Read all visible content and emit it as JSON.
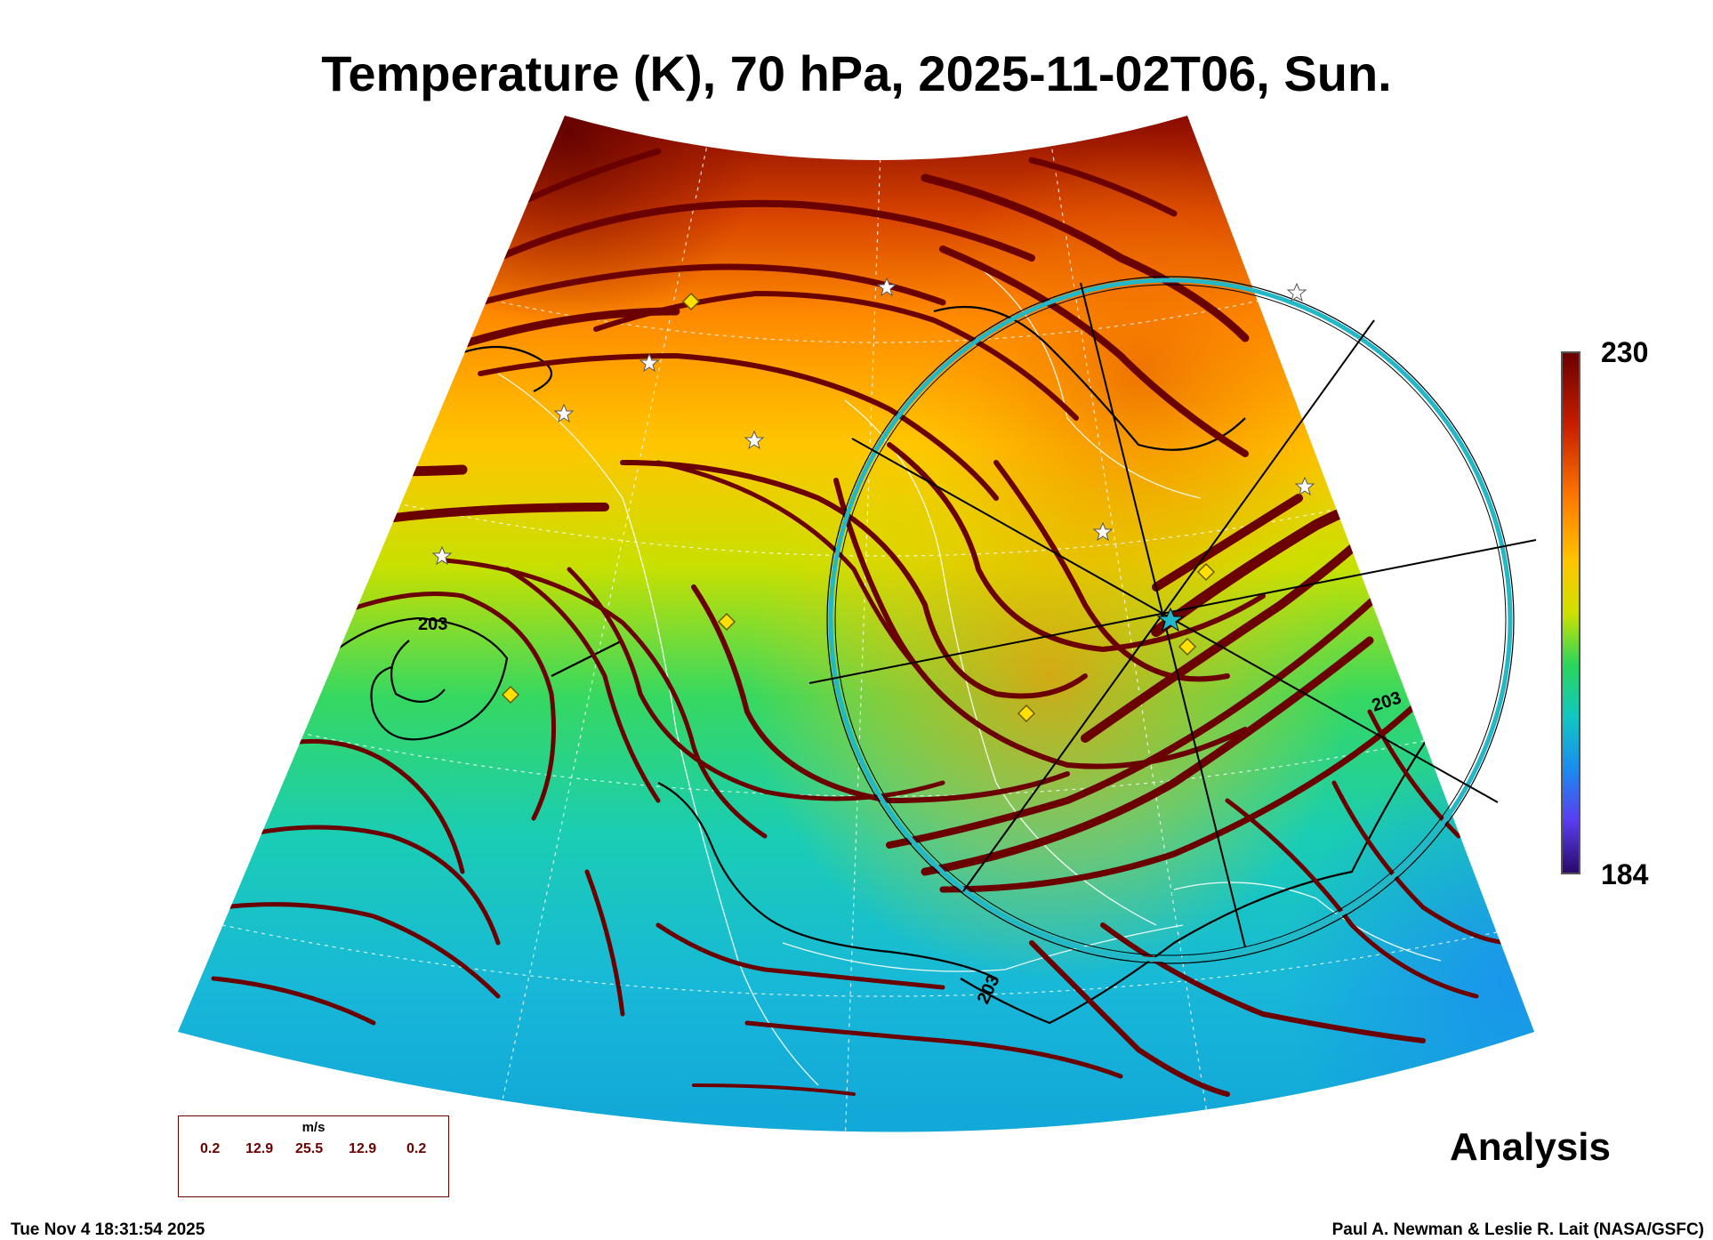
{
  "title": "Temperature (K), 70 hPa, 2025-11-02T06, Sun.",
  "colorbar": {
    "max_label": "230",
    "min_label": "184",
    "colors": [
      "#6b0000",
      "#c81e00",
      "#ff7a00",
      "#ffc400",
      "#cfe000",
      "#2ad65c",
      "#11c7c2",
      "#1a8cf0",
      "#5a3df0",
      "#2a0a6b"
    ]
  },
  "contour_labels": [
    "203",
    "203",
    "203"
  ],
  "streamline_color": "#6b0000",
  "circle_color": "#22b8c8",
  "wind_legend": {
    "unit": "m/s",
    "values": [
      "0.2",
      "12.9",
      "25.5",
      "12.9",
      "0.2"
    ]
  },
  "analysis_label": "Analysis",
  "timestamp": "Tue Nov  4 18:31:54 2025",
  "credit": "Paul A. Newman & Leslie R. Lait (NASA/GSFC)",
  "icons": {
    "station_marker": "yellow-diamond-icon",
    "star_marker": "white-star-icon"
  }
}
